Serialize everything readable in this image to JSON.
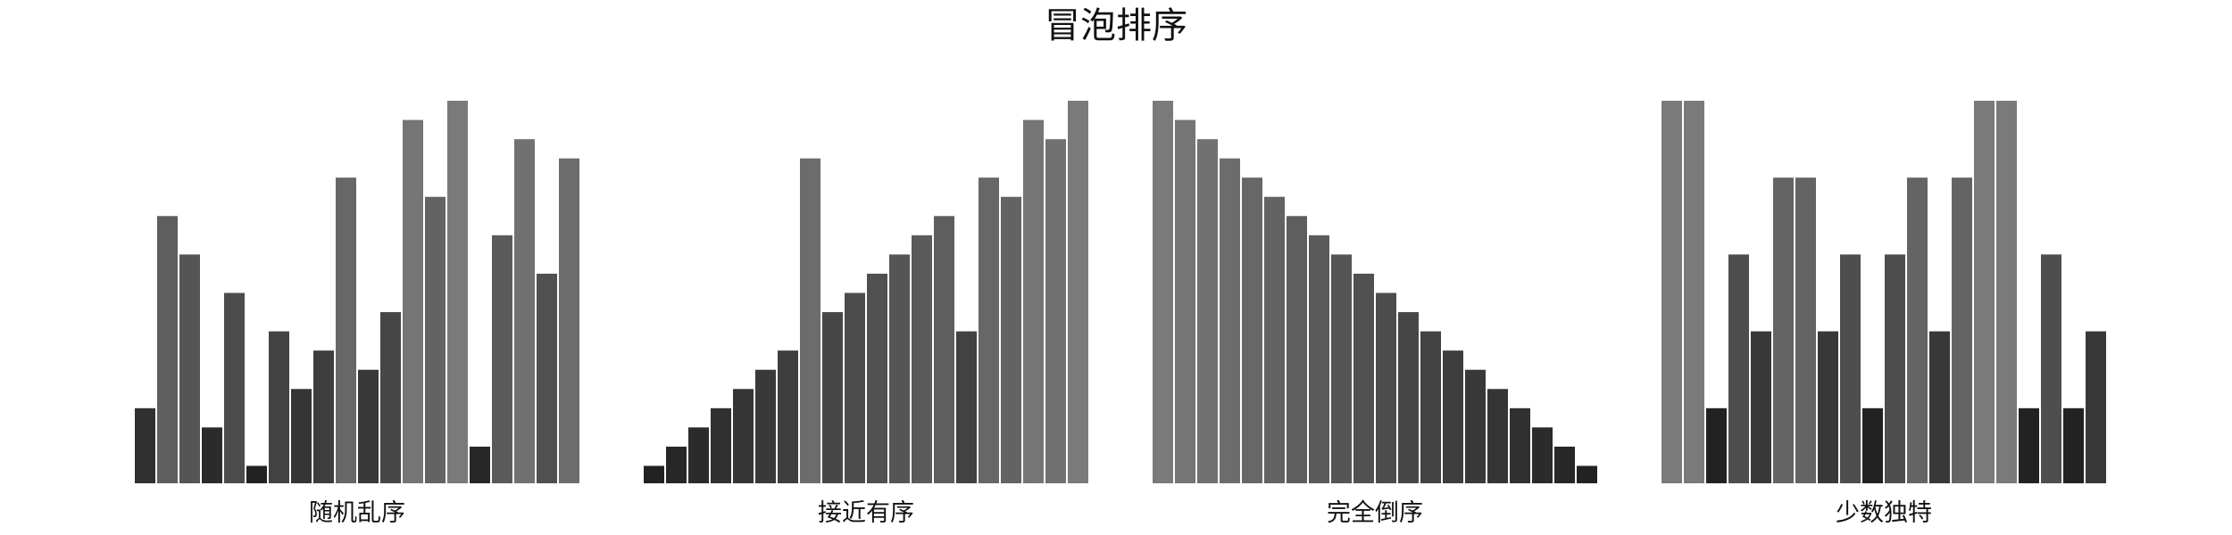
{
  "chart_data": {
    "type": "bar",
    "title": "冒泡排序",
    "panels": [
      {
        "label": "随机乱序",
        "values": [
          4,
          14,
          12,
          3,
          10,
          1,
          8,
          5,
          7,
          16,
          6,
          9,
          19,
          15,
          20,
          2,
          13,
          18,
          11,
          17
        ],
        "ylim": [
          0,
          20
        ]
      },
      {
        "label": "接近有序",
        "values": [
          1,
          2,
          3,
          4,
          5,
          6,
          7,
          17,
          9,
          10,
          11,
          12,
          13,
          14,
          8,
          16,
          15,
          19,
          18,
          20
        ],
        "ylim": [
          0,
          20
        ]
      },
      {
        "label": "完全倒序",
        "values": [
          20,
          19,
          18,
          17,
          16,
          15,
          14,
          13,
          12,
          11,
          10,
          9,
          8,
          7,
          6,
          5,
          4,
          3,
          2,
          1
        ],
        "ylim": [
          0,
          20
        ]
      },
      {
        "label": "少数独特",
        "values": [
          20,
          20,
          4,
          12,
          8,
          16,
          16,
          8,
          12,
          4,
          12,
          16,
          8,
          16,
          20,
          20,
          4,
          12,
          4,
          8
        ],
        "ylim": [
          0,
          20
        ]
      }
    ],
    "bar_color_light": "#7a7a7a",
    "bar_color_dark": "#222222",
    "bar_edge_color": "#ffffff",
    "grid": false,
    "axes_visible": false
  }
}
